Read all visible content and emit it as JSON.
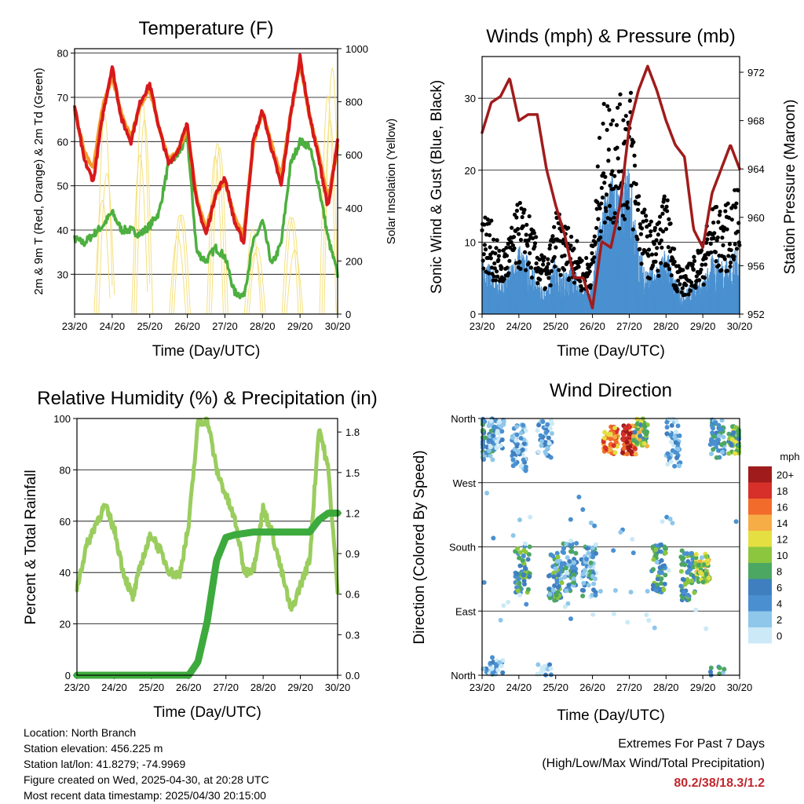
{
  "x_ticks": [
    "23/20",
    "24/20",
    "25/20",
    "26/20",
    "27/20",
    "28/20",
    "29/20",
    "30/20"
  ],
  "info": {
    "location": "Location: North Branch",
    "elevation": "Station elevation: 456.225 m",
    "latlon": "Station lat/lon: 41.8279; -74.9969",
    "created": "Figure created on Wed, 2025-04-30, at 20:28 UTC",
    "recent": "Most recent data timestamp: 2025/04/30 20:15:00"
  },
  "extremes": {
    "title": "Extremes For Past 7 Days",
    "subtitle": "(High/Low/Max Wind/Total Precipitation)",
    "values": "80.2/38/18.3/1.2"
  },
  "colors": {
    "temp2m": "#d7191c",
    "temp9m": "#f59a2b",
    "dewpoint": "#4daf3f",
    "solar": "#f5e07a",
    "wind": "#4a90d0",
    "gust": "#000000",
    "pressure": "#a01c1c",
    "rh": "#9acd5e",
    "precip": "#3daa3d"
  },
  "chart_data": [
    {
      "type": "line",
      "title": "Temperature (F)",
      "xlabel": "Time (Day/UTC)",
      "ylabel": "2m & 9m T (Red, Orange) & 2m Td (Green)",
      "y2label": "Solar Insolation (Yellow)",
      "ylim": [
        21,
        81
      ],
      "y2lim": [
        0,
        1000
      ],
      "yticks": [
        30,
        40,
        50,
        60,
        70,
        80
      ],
      "y2ticks": [
        0,
        200,
        400,
        600,
        800,
        1000
      ],
      "x": [
        0,
        0.25,
        0.5,
        0.75,
        1,
        1.25,
        1.5,
        1.75,
        2,
        2.25,
        2.5,
        2.75,
        3,
        3.25,
        3.5,
        3.75,
        4,
        4.25,
        4.5,
        4.75,
        5,
        5.25,
        5.5,
        5.75,
        6,
        6.25,
        6.5,
        6.75,
        7
      ],
      "series": [
        {
          "name": "2m T",
          "values": [
            68,
            56,
            51,
            66,
            77,
            65,
            60,
            69,
            73,
            63,
            55,
            58,
            64,
            46,
            39,
            48,
            52,
            42,
            37,
            60,
            67,
            58,
            50,
            66,
            79,
            66,
            56,
            45,
            60
          ]
        },
        {
          "name": "9m T",
          "values": [
            67,
            58,
            54,
            68,
            75,
            66,
            61,
            68,
            72,
            63,
            56,
            58,
            63,
            47,
            40,
            48,
            51,
            43,
            39,
            59,
            67,
            59,
            52,
            66,
            78,
            66,
            57,
            47,
            59
          ]
        },
        {
          "name": "2m Td",
          "values": [
            38,
            37,
            39,
            41,
            44,
            40,
            40,
            39,
            41,
            44,
            55,
            57,
            61,
            35,
            33,
            36,
            34,
            26,
            25,
            37,
            42,
            32,
            37,
            55,
            60,
            59,
            50,
            38,
            30
          ]
        },
        {
          "name": "Solar Insolation",
          "peaks_day": [
            0.8,
            1.8,
            2.8,
            3.8,
            4.8,
            5.8,
            6.8
          ],
          "peaks_val": [
            780,
            930,
            420,
            750,
            350,
            420,
            960
          ]
        }
      ]
    },
    {
      "type": "scatter",
      "title": "Winds (mph) & Pressure (mb)",
      "xlabel": "Time (Day/UTC)",
      "ylabel": "Sonic Wind & Gust (Blue, Black)",
      "y2label": "Station Pressure (Maroon)",
      "ylim": [
        0,
        35.8
      ],
      "y2lim": [
        952,
        973.3
      ],
      "yticks": [
        0,
        10,
        20,
        30
      ],
      "y2ticks": [
        952,
        956,
        960,
        964,
        968,
        972
      ],
      "x": [
        0,
        0.25,
        0.5,
        0.75,
        1,
        1.25,
        1.5,
        1.75,
        2,
        2.25,
        2.5,
        2.75,
        3,
        3.25,
        3.5,
        3.75,
        4,
        4.25,
        4.5,
        4.75,
        5,
        5.25,
        5.5,
        5.75,
        6,
        6.25,
        6.5,
        6.75,
        7
      ],
      "series": [
        {
          "name": "Sonic Wind",
          "values": [
            5,
            4,
            3,
            4,
            6,
            5,
            3,
            2,
            5,
            4,
            4,
            2,
            3,
            10,
            12,
            11,
            13,
            6,
            4,
            4,
            6,
            3,
            2,
            3,
            3,
            5,
            5,
            5,
            6
          ]
        },
        {
          "name": "Gust",
          "values": [
            11,
            9,
            6,
            8,
            11,
            10,
            7,
            5,
            10,
            9,
            8,
            5,
            7,
            20,
            22,
            21,
            24,
            13,
            9,
            9,
            12,
            6,
            4,
            6,
            7,
            11,
            10,
            11,
            13
          ]
        },
        {
          "name": "Station Pressure",
          "values": [
            967,
            969.5,
            970,
            971.5,
            968,
            968.5,
            968.5,
            964,
            961,
            958.5,
            955,
            955,
            952.5,
            958,
            957.5,
            961,
            967.5,
            970.5,
            972.5,
            970.5,
            968,
            966,
            965,
            959,
            957.5,
            962,
            964,
            966,
            964
          ]
        }
      ]
    },
    {
      "type": "line",
      "title": "Relative Humidity (%) & Precipitation (in)",
      "xlabel": "Time (Day/UTC)",
      "ylabel": "Percent & Total Rainfall",
      "ylim": [
        0,
        100
      ],
      "y2lim": [
        0,
        1.9
      ],
      "yticks": [
        0,
        20,
        40,
        60,
        80,
        100
      ],
      "y2ticks": [
        0.0,
        0.3,
        0.6,
        0.9,
        1.2,
        1.5,
        1.8
      ],
      "x": [
        0,
        0.25,
        0.5,
        0.75,
        1,
        1.25,
        1.5,
        1.75,
        2,
        2.25,
        2.5,
        2.75,
        3,
        3.25,
        3.5,
        3.75,
        4,
        4.25,
        4.5,
        4.75,
        5,
        5.25,
        5.5,
        5.75,
        6,
        6.25,
        6.5,
        6.75,
        7
      ],
      "series": [
        {
          "name": "Relative Humidity",
          "values": [
            34,
            50,
            59,
            66,
            57,
            40,
            30,
            45,
            55,
            48,
            40,
            39,
            58,
            98,
            100,
            80,
            70,
            60,
            40,
            42,
            65,
            55,
            40,
            25,
            35,
            45,
            97,
            80,
            33
          ]
        },
        {
          "name": "Precipitation",
          "values": [
            0,
            0,
            0,
            0,
            0,
            0,
            0,
            0,
            0,
            0,
            0,
            0,
            0,
            0.1,
            0.4,
            0.85,
            1.02,
            1.04,
            1.05,
            1.06,
            1.06,
            1.06,
            1.06,
            1.06,
            1.06,
            1.06,
            1.15,
            1.2,
            1.2
          ]
        }
      ]
    },
    {
      "type": "scatter",
      "title": "Wind Direction",
      "xlabel": "Time (Day/UTC)",
      "ylabel": "Direction (Colored By Speed)",
      "yticks": [
        "North",
        "East",
        "South",
        "West",
        "North"
      ],
      "legend_title": "mph",
      "legend_labels": [
        "0",
        "2",
        "4",
        "6",
        "8",
        "10",
        "12",
        "14",
        "16",
        "18",
        "20+"
      ],
      "legend_colors": [
        "#cbe9f6",
        "#8ec7ea",
        "#4a90d0",
        "#3f7fbf",
        "#4ba761",
        "#8cc63f",
        "#e5df42",
        "#f7ad45",
        "#f26b2b",
        "#d7302a",
        "#a01b1b"
      ],
      "series": [
        {
          "name": "directions",
          "days": [
            0.1,
            0.4,
            1.0,
            1.1,
            1.7,
            2.0,
            2.4,
            2.9,
            3.5,
            4.0,
            4.3,
            4.8,
            5.2,
            5.6,
            6.0,
            6.4,
            6.9
          ],
          "deg": [
            335,
            350,
            320,
            150,
            340,
            140,
            150,
            145,
            330,
            330,
            340,
            150,
            325,
            140,
            150,
            340,
            330
          ],
          "speed": [
            5,
            2,
            3,
            7,
            3,
            6,
            5,
            4,
            15,
            18,
            10,
            6,
            3,
            7,
            10,
            5,
            9
          ]
        }
      ]
    }
  ]
}
